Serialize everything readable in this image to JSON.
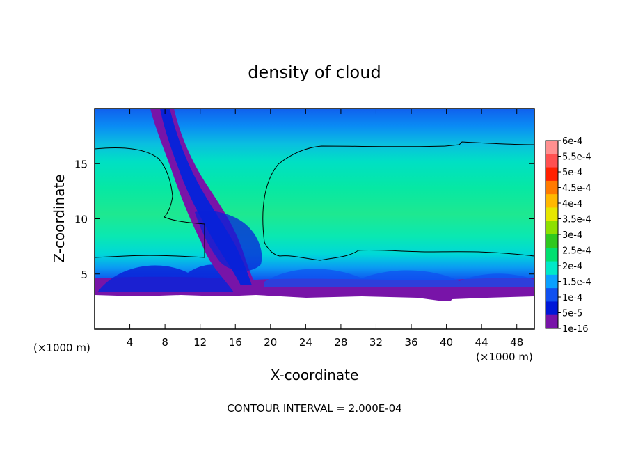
{
  "chart_data": {
    "type": "heatmap",
    "title": "density of cloud",
    "xlabel": "X-coordinate",
    "ylabel": "Z-coordinate",
    "x_unit": "(×1000 m)",
    "footer": "CONTOUR INTERVAL = 2.000E-04",
    "xlim": [
      0,
      50
    ],
    "ylim": [
      0,
      20
    ],
    "x_ticks": [
      4,
      8,
      12,
      16,
      20,
      24,
      28,
      32,
      36,
      40,
      44,
      48
    ],
    "y_ticks": [
      5,
      10,
      15
    ],
    "colorbar": {
      "labels": [
        "6e-4",
        "5.5e-4",
        "5e-4",
        "4.5e-4",
        "4e-4",
        "3.5e-4",
        "3e-4",
        "2.5e-4",
        "2e-4",
        "1.5e-4",
        "1e-4",
        "5e-5",
        "1e-16"
      ],
      "colors": [
        "#ff9090",
        "#ff5050",
        "#ff2000",
        "#ff7a00",
        "#ffb800",
        "#e6e600",
        "#8ee000",
        "#2fc81e",
        "#00e070",
        "#00e8c8",
        "#0aa0ff",
        "#1050f0",
        "#0018d8",
        "#7814a8"
      ]
    },
    "contour_levels": [
      0.0002
    ]
  }
}
